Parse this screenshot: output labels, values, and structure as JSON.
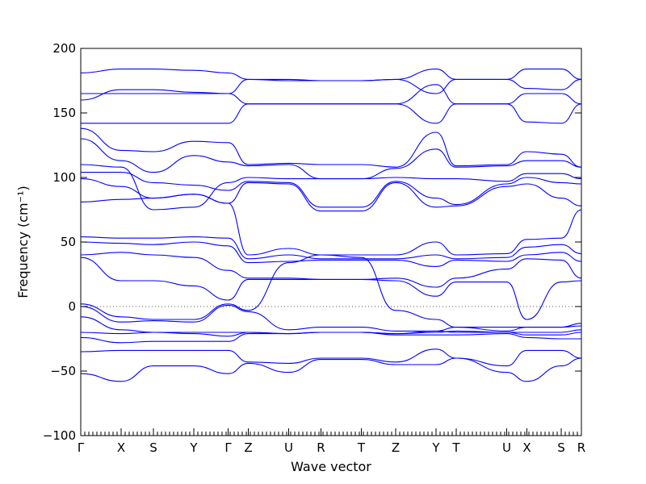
{
  "chart_data": {
    "type": "line",
    "title": "",
    "xlabel": "Wave vector",
    "ylabel": "Frequency (cm⁻¹)",
    "ylim": [
      -100,
      200
    ],
    "yticks": [
      -100,
      -50,
      0,
      50,
      100,
      150,
      200
    ],
    "ytick_labels": [
      "−100",
      "−50",
      "0",
      "50",
      "100",
      "150",
      "200"
    ],
    "zero_line": true,
    "grid": false,
    "line_color": "#0000ff",
    "xlim": [
      0,
      12.4
    ],
    "kpoints": [
      {
        "label": "Γ",
        "x": 0.0
      },
      {
        "label": "X",
        "x": 1.0
      },
      {
        "label": "S",
        "x": 1.8
      },
      {
        "label": "Y",
        "x": 2.8
      },
      {
        "label": "Γ",
        "x": 3.65
      },
      {
        "label": "Z",
        "x": 4.15
      },
      {
        "label": "U",
        "x": 5.15
      },
      {
        "label": "R",
        "x": 5.95
      },
      {
        "label": "T",
        "x": 6.95
      },
      {
        "label": "Z",
        "x": 7.8
      },
      {
        "label": "Y",
        "x": 8.8
      },
      {
        "label": "T",
        "x": 9.3
      },
      {
        "label": "U",
        "x": 10.55
      },
      {
        "label": "X",
        "x": 11.05
      },
      {
        "label": "S",
        "x": 11.9
      },
      {
        "label": "R",
        "x": 12.4
      }
    ],
    "series": [
      {
        "x": [
          0,
          1,
          1.8,
          2.8,
          3.65,
          4.15,
          5.15,
          5.95,
          6.95,
          7.8,
          8.8,
          9.3,
          10.55,
          11.05,
          11.9,
          12.4
        ],
        "values": [
          181,
          184,
          184,
          183,
          181,
          176,
          176,
          175,
          175,
          176,
          165,
          176,
          176,
          184,
          184,
          176
        ]
      },
      {
        "x": [
          0,
          1,
          1.8,
          2.8,
          3.65,
          4.15,
          5.15,
          5.95,
          6.95,
          7.8,
          8.8,
          9.3,
          10.55,
          11.05,
          11.9,
          12.4
        ],
        "values": [
          165,
          165,
          165,
          165,
          165,
          176,
          175,
          175,
          175,
          176,
          184,
          176,
          176,
          169,
          168,
          176
        ]
      },
      {
        "x": [
          0,
          1,
          1.8,
          2.8,
          3.65,
          4.15,
          5.15,
          5.95,
          6.95,
          7.8,
          8.8,
          9.3,
          10.55,
          11.05,
          11.9,
          12.4
        ],
        "values": [
          160,
          168,
          168,
          166,
          165,
          157,
          157,
          157,
          157,
          157,
          142,
          157,
          157,
          165,
          165,
          157
        ]
      },
      {
        "x": [
          0,
          1,
          1.8,
          2.8,
          3.65,
          4.15,
          5.15,
          5.95,
          6.95,
          7.8,
          8.8,
          9.3,
          10.55,
          11.05,
          11.9,
          12.4
        ],
        "values": [
          142,
          142,
          142,
          142,
          142,
          157,
          157,
          157,
          157,
          157,
          172,
          157,
          157,
          143,
          142,
          157
        ]
      },
      {
        "x": [
          0,
          1,
          1.8,
          2.8,
          3.65,
          4.15,
          5.15,
          5.95,
          6.95,
          7.8,
          8.8,
          9.3,
          10.55,
          11.05,
          11.9,
          12.4
        ],
        "values": [
          138,
          121,
          120,
          128,
          127,
          110,
          111,
          110,
          110,
          108,
          135,
          109,
          110,
          120,
          118,
          108
        ]
      },
      {
        "x": [
          0,
          1,
          1.8,
          2.8,
          3.65,
          4.15,
          5.15,
          5.95,
          6.95,
          7.8,
          8.8,
          9.3,
          10.55,
          11.05,
          11.9,
          12.4
        ],
        "values": [
          130,
          113,
          104,
          117,
          112,
          109,
          110,
          99,
          99,
          107,
          122,
          108,
          109,
          113,
          113,
          108
        ]
      },
      {
        "x": [
          0,
          1,
          1.8,
          2.8,
          3.65,
          4.15,
          5.15,
          5.95,
          6.95,
          7.8,
          8.8,
          9.3,
          10.55,
          11.05,
          11.9,
          12.4
        ],
        "values": [
          110,
          108,
          75,
          77,
          96,
          100,
          99,
          99,
          99,
          100,
          99,
          99,
          97,
          103,
          103,
          99
        ]
      },
      {
        "x": [
          0,
          1,
          1.8,
          2.8,
          3.65,
          4.15,
          5.15,
          5.95,
          6.95,
          7.8,
          8.8,
          9.3,
          10.55,
          11.05,
          11.9,
          12.4
        ],
        "values": [
          104,
          104,
          96,
          94,
          90,
          97,
          96,
          77,
          77,
          97,
          84,
          79,
          95,
          100,
          96,
          95
        ]
      },
      {
        "x": [
          0,
          1,
          1.8,
          2.8,
          3.65,
          4.15,
          5.15,
          5.95,
          6.95,
          7.8,
          8.8,
          9.3,
          10.55,
          11.05,
          11.9,
          12.4
        ],
        "values": [
          99,
          93,
          84,
          87,
          80,
          96,
          95,
          74,
          74,
          96,
          77,
          78,
          93,
          95,
          84,
          78
        ]
      },
      {
        "x": [
          0,
          1,
          1.8,
          2.8,
          3.65,
          4.15,
          5.15,
          5.95,
          6.95,
          7.8,
          8.8,
          9.3,
          10.55,
          11.05,
          11.9,
          12.4
        ],
        "values": [
          81,
          83,
          84,
          87,
          80,
          40,
          45,
          40,
          40,
          40,
          50,
          40,
          41,
          52,
          53,
          75
        ]
      },
      {
        "x": [
          0,
          1,
          1.8,
          2.8,
          3.65,
          4.15,
          5.15,
          5.95,
          6.95,
          7.8,
          8.8,
          9.3,
          10.55,
          11.05,
          11.9,
          12.4
        ],
        "values": [
          54,
          53,
          53,
          54,
          53,
          37,
          40,
          37,
          37,
          37,
          40,
          37,
          38,
          46,
          48,
          41
        ]
      },
      {
        "x": [
          0,
          1,
          1.8,
          2.8,
          3.65,
          4.15,
          5.15,
          5.95,
          6.95,
          7.8,
          8.8,
          9.3,
          10.55,
          11.05,
          11.9,
          12.4
        ],
        "values": [
          50,
          49,
          48,
          50,
          47,
          34,
          35,
          36,
          36,
          36,
          31,
          36,
          35,
          40,
          42,
          35
        ]
      },
      {
        "x": [
          0,
          1,
          1.8,
          2.8,
          3.65,
          4.15,
          5.15,
          5.95,
          6.95,
          7.8,
          8.8,
          9.3,
          10.55,
          11.05,
          11.9,
          12.4
        ],
        "values": [
          40,
          42,
          40,
          38,
          28,
          22,
          22,
          21,
          21,
          22,
          15,
          22,
          29,
          37,
          36,
          22
        ]
      },
      {
        "x": [
          0,
          1,
          1.8,
          2.8,
          3.65,
          4.15,
          5.15,
          5.95,
          6.95,
          7.8,
          8.8,
          9.3,
          10.55,
          11.05,
          11.9,
          12.4
        ],
        "values": [
          38,
          20,
          20,
          16,
          5,
          21,
          21,
          21,
          21,
          20,
          8,
          19,
          19,
          -10,
          19,
          20
        ]
      },
      {
        "x": [
          0,
          1,
          1.8,
          2.8,
          3.65,
          4.15,
          5.15,
          5.95,
          6.95,
          7.8,
          8.8,
          9.3,
          10.55,
          11.05,
          11.9,
          12.4
        ],
        "values": [
          2,
          -8,
          -10,
          -10,
          2,
          -3,
          34,
          40,
          38,
          -3,
          -10,
          -16,
          -16,
          -16,
          -16,
          -13
        ]
      },
      {
        "x": [
          0,
          1,
          1.8,
          2.8,
          3.65,
          4.15,
          5.15,
          5.95,
          6.95,
          7.8,
          8.8,
          9.3,
          10.55,
          11.05,
          11.9,
          12.4
        ],
        "values": [
          0,
          -12,
          -11,
          -12,
          1,
          -4,
          -18,
          -16,
          -16,
          -19,
          -19,
          -16,
          -19,
          -16,
          -16,
          -15
        ]
      },
      {
        "x": [
          0,
          1,
          1.8,
          2.8,
          3.65,
          4.15,
          5.15,
          5.95,
          6.95,
          7.8,
          8.8,
          9.3,
          10.55,
          11.05,
          11.9,
          12.4
        ],
        "values": [
          -8,
          -18,
          -20,
          -20,
          -20,
          -20,
          -21,
          -20,
          -20,
          -21,
          -20,
          -19,
          -20,
          -20,
          -20,
          -18
        ]
      },
      {
        "x": [
          0,
          1,
          1.8,
          2.8,
          3.65,
          4.15,
          5.15,
          5.95,
          6.95,
          7.8,
          8.8,
          9.3,
          10.55,
          11.05,
          11.9,
          12.4
        ],
        "values": [
          -20,
          -21,
          -20,
          -21,
          -23,
          -20,
          -21,
          -20,
          -20,
          -21,
          -19,
          -20,
          -20,
          -22,
          -22,
          -20
        ]
      },
      {
        "x": [
          0,
          1,
          1.8,
          2.8,
          3.65,
          4.15,
          5.15,
          5.95,
          6.95,
          7.8,
          8.8,
          9.3,
          10.55,
          11.05,
          11.9,
          12.4
        ],
        "values": [
          -24,
          -28,
          -27,
          -27,
          -27,
          -21,
          -21,
          -20,
          -20,
          -22,
          -22,
          -22,
          -21,
          -24,
          -25,
          -25
        ]
      },
      {
        "x": [
          0,
          1,
          1.8,
          2.8,
          3.65,
          4.15,
          5.15,
          5.95,
          6.95,
          7.8,
          8.8,
          9.3,
          10.55,
          11.05,
          11.9,
          12.4
        ],
        "values": [
          -35,
          -34,
          -34,
          -34,
          -34,
          -43,
          -44,
          -40,
          -40,
          -43,
          -33,
          -40,
          -46,
          -34,
          -34,
          -40
        ]
      },
      {
        "x": [
          0,
          1,
          1.8,
          2.8,
          3.65,
          4.15,
          5.15,
          5.95,
          6.95,
          7.8,
          8.8,
          9.3,
          10.55,
          11.05,
          11.9,
          12.4
        ],
        "values": [
          -52,
          -58,
          -46,
          -46,
          -52,
          -44,
          -51,
          -41,
          -41,
          -45,
          -45,
          -40,
          -51,
          -58,
          -46,
          -40
        ]
      }
    ]
  }
}
